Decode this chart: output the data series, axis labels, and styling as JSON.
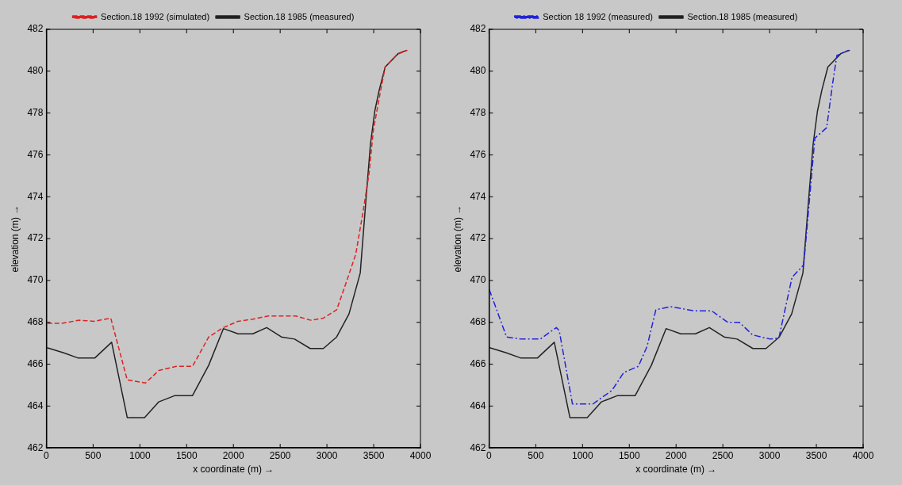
{
  "chart_data": [
    {
      "type": "line",
      "xlabel": "x coordinate (m) →",
      "ylabel": "elevation (m) →",
      "xlim": [
        0,
        4000
      ],
      "xticks": [
        0,
        500,
        1000,
        1500,
        2000,
        2500,
        3000,
        3500,
        4000
      ],
      "ylim": [
        462,
        482
      ],
      "yticks": [
        462,
        464,
        466,
        468,
        470,
        472,
        474,
        476,
        478,
        480,
        482
      ],
      "grid": false,
      "legend": "top",
      "marker": "none",
      "series": [
        {
          "name": "Section.18 1985 (measured)",
          "color": "#222222",
          "line_style": "solid",
          "x": [
            0,
            180,
            337,
            519,
            698,
            865,
            1050,
            1202,
            1375,
            1563,
            1736,
            1893,
            2050,
            2207,
            2356,
            2513,
            2654,
            2821,
            2962,
            3104,
            3236,
            3356,
            3418,
            3465,
            3512,
            3559,
            3623,
            3764,
            3858
          ],
          "values": [
            466.8,
            466.55,
            466.3,
            466.3,
            467.05,
            463.45,
            463.45,
            464.2,
            464.5,
            464.5,
            465.95,
            467.7,
            467.45,
            467.45,
            467.75,
            467.3,
            467.2,
            466.75,
            466.75,
            467.3,
            468.4,
            470.35,
            473.9,
            476.5,
            478.1,
            479.1,
            480.2,
            480.85,
            481.0
          ]
        },
        {
          "name": "Section.18 1992 (simulated)",
          "color": "#dd2222",
          "line_style": "dashed",
          "x": [
            0,
            157,
            352,
            509,
            689,
            865,
            1060,
            1202,
            1390,
            1563,
            1736,
            1893,
            2050,
            2207,
            2372,
            2530,
            2670,
            2827,
            2962,
            3104,
            3198,
            3308,
            3387,
            3450,
            3497,
            3575,
            3623,
            3750,
            3858
          ],
          "values": [
            467.95,
            467.95,
            468.1,
            468.05,
            468.2,
            465.25,
            465.1,
            465.7,
            465.9,
            465.9,
            467.3,
            467.75,
            468.05,
            468.15,
            468.3,
            468.3,
            468.3,
            468.1,
            468.2,
            468.6,
            469.8,
            471.25,
            473.3,
            475.1,
            477.2,
            479.1,
            480.2,
            480.8,
            481.0
          ]
        }
      ]
    },
    {
      "type": "line",
      "xlabel": "x coordinate (m) →",
      "ylabel": "elevation (m) →",
      "xlim": [
        0,
        4000
      ],
      "xticks": [
        0,
        500,
        1000,
        1500,
        2000,
        2500,
        3000,
        3500,
        4000
      ],
      "ylim": [
        462,
        482
      ],
      "yticks": [
        462,
        464,
        466,
        468,
        470,
        472,
        474,
        476,
        478,
        480,
        482
      ],
      "grid": false,
      "legend": "top",
      "marker": "none",
      "series": [
        {
          "name": "Section.18 1985 (measured)",
          "color": "#222222",
          "line_style": "solid",
          "x": [
            0,
            180,
            337,
            519,
            698,
            865,
            1050,
            1202,
            1375,
            1563,
            1736,
            1893,
            2050,
            2207,
            2356,
            2513,
            2654,
            2821,
            2962,
            3104,
            3236,
            3356,
            3418,
            3465,
            3512,
            3559,
            3623,
            3764,
            3858
          ],
          "values": [
            466.8,
            466.55,
            466.3,
            466.3,
            467.05,
            463.45,
            463.45,
            464.2,
            464.5,
            464.5,
            465.95,
            467.7,
            467.45,
            467.45,
            467.75,
            467.3,
            467.2,
            466.75,
            466.75,
            467.3,
            468.4,
            470.35,
            473.9,
            476.5,
            478.1,
            479.1,
            480.2,
            480.85,
            481.0
          ]
        },
        {
          "name": "Section 18 1992 (measured)",
          "color": "#2222dd",
          "line_style": "dashdot",
          "x": [
            0,
            188,
            344,
            548,
            720,
            751,
            892,
            1111,
            1315,
            1440,
            1597,
            1690,
            1784,
            1941,
            2192,
            2380,
            2552,
            2677,
            2818,
            3005,
            3099,
            3240,
            3365,
            3484,
            3610,
            3672,
            3719,
            3844
          ],
          "values": [
            469.6,
            467.3,
            467.2,
            467.2,
            467.75,
            467.6,
            464.1,
            464.1,
            464.75,
            465.6,
            465.9,
            466.85,
            468.6,
            468.75,
            468.55,
            468.55,
            468.0,
            468.0,
            467.4,
            467.2,
            467.25,
            470.15,
            470.75,
            476.8,
            477.3,
            479.35,
            480.75,
            481.0
          ]
        }
      ]
    }
  ]
}
